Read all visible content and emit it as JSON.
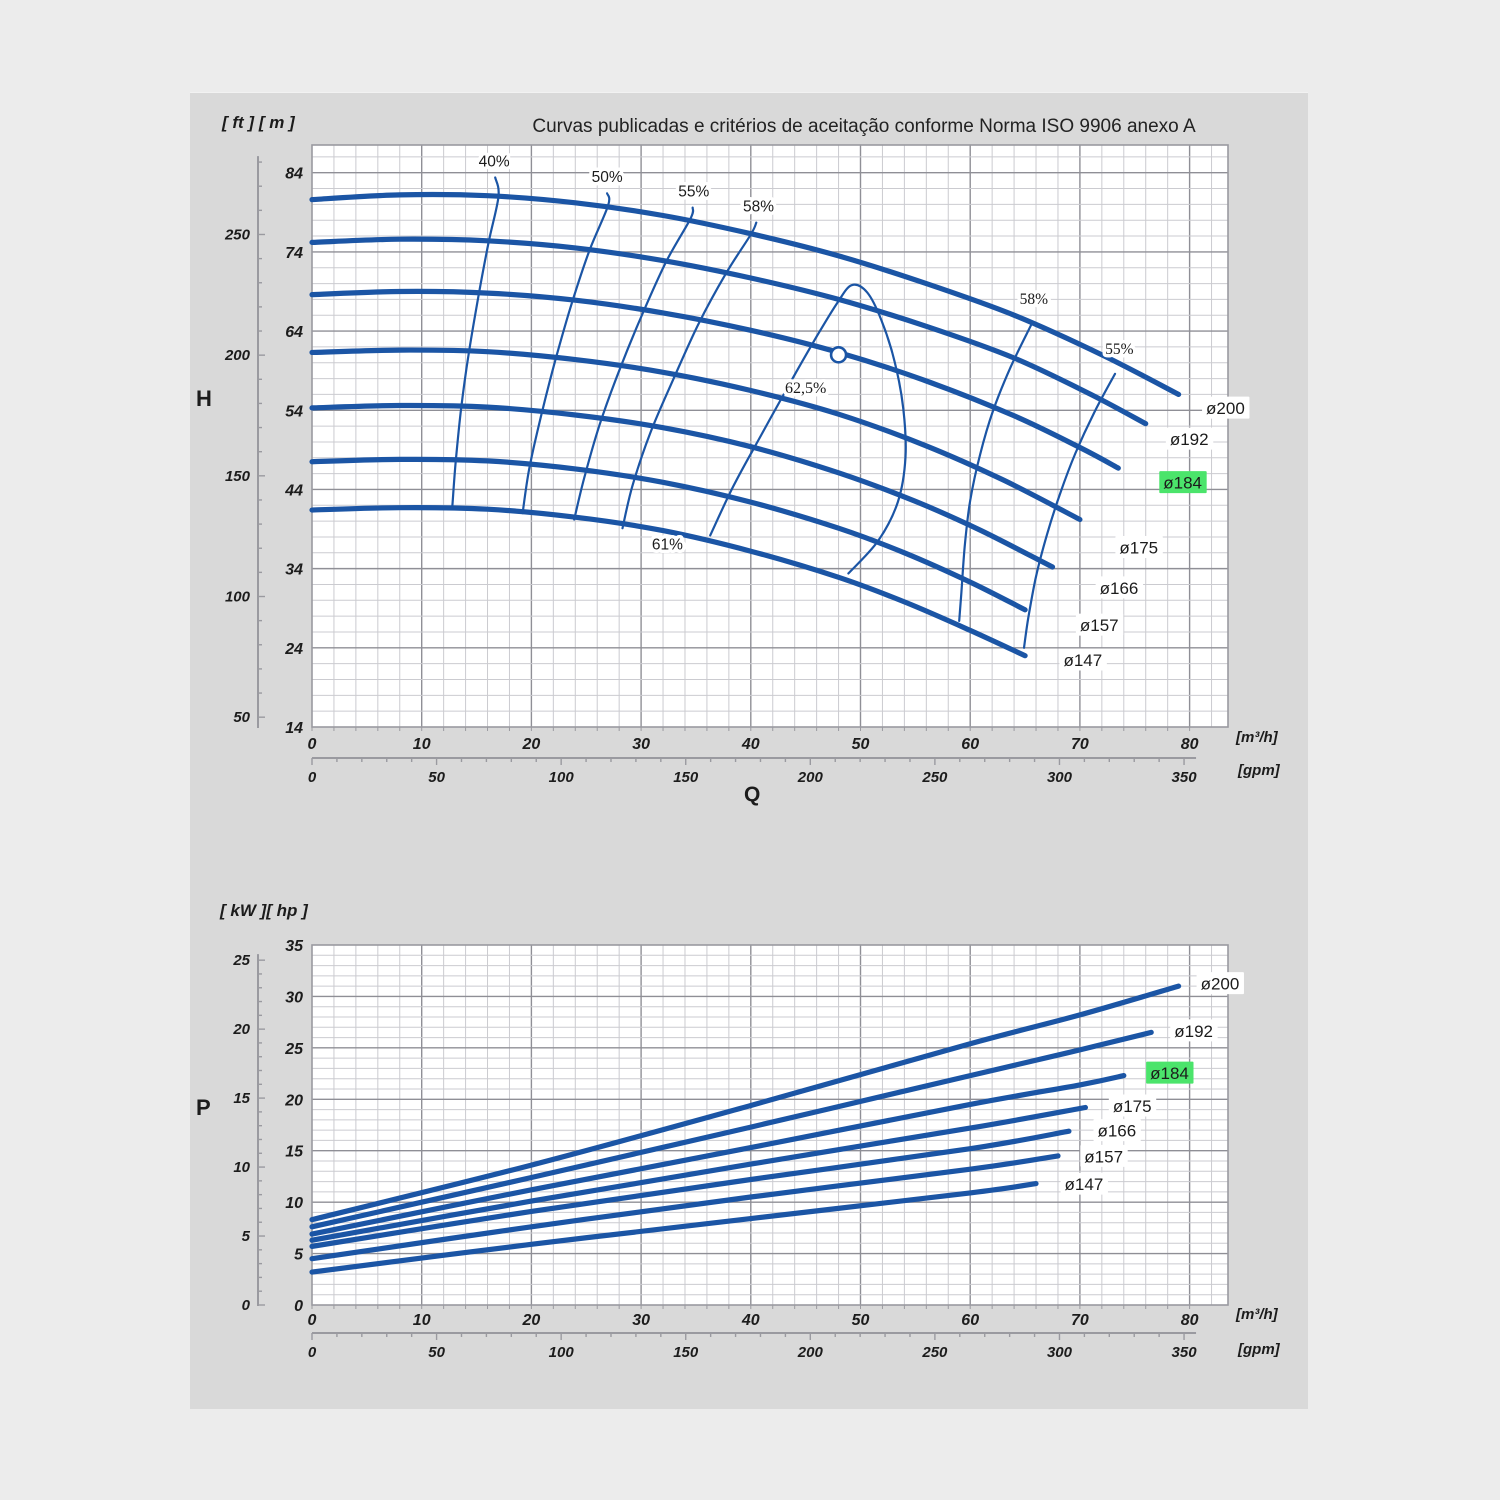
{
  "title": "Curvas publicadas e critérios de aceitação conforme Norma ISO 9906 anexo A",
  "labels": {
    "head_units_header": "[ ft ]  [ m ]",
    "power_units_header": "[ kW ][ hp ]",
    "head_axis": "H",
    "power_axis": "P",
    "flow_axis": "Q",
    "flow_unit_metric": "[m³/h]",
    "flow_unit_us": "[gpm]"
  },
  "colors": {
    "curve": "#1b55a5",
    "grid_minor": "#cbcbd0",
    "grid_major": "#8f8f96",
    "plot_border": "#9a9aa0",
    "plot_bg": "#ffffff",
    "text": "#1c1c1c",
    "label_bg": "#ffffff",
    "highlight_bg": "#4be46b",
    "ruler": "#9a9aa0"
  },
  "chart_data": [
    {
      "id": "head-flow",
      "type": "line",
      "ylabel": "H",
      "xlabel": "Q",
      "x_axis": {
        "range": [
          0,
          83.5
        ],
        "tick_labels": [
          0,
          10,
          20,
          30,
          40,
          50,
          60,
          70,
          80
        ],
        "minor_step": 2,
        "unit": "[m³/h]"
      },
      "x_secondary_axis": {
        "unit": "[gpm]",
        "tick_labels": [
          0,
          50,
          100,
          150,
          200,
          250,
          300,
          350
        ],
        "minor_step": 10,
        "max_tick": 350,
        "gpm_to_m3h": 0.227125
      },
      "y_axis": {
        "range": [
          14,
          87.5
        ],
        "tick_labels": [
          84,
          74,
          64,
          54,
          44,
          34,
          24,
          14
        ],
        "minor_step": 2,
        "unit": "m"
      },
      "y_secondary_axis": {
        "unit": "ft",
        "tick_labels": [
          250,
          200,
          150,
          100,
          50
        ],
        "tick_step": 10,
        "min_tick": 50,
        "max_tick": 280,
        "ft_to_m": 0.3048
      },
      "series": [
        {
          "name": "ø200",
          "highlight": false,
          "label_pos": [
            81.5,
            54.2
          ],
          "points": [
            [
              0,
              80.6
            ],
            [
              8,
              81.2
            ],
            [
              16,
              81.1
            ],
            [
              24,
              80.2
            ],
            [
              32,
              78.6
            ],
            [
              40,
              76.3
            ],
            [
              48,
              73.5
            ],
            [
              56,
              70.0
            ],
            [
              64,
              66.0
            ],
            [
              72,
              61.0
            ],
            [
              79,
              56.0
            ]
          ]
        },
        {
          "name": "ø192",
          "highlight": false,
          "label_pos": [
            78.2,
            50.3
          ],
          "points": [
            [
              0,
              75.2
            ],
            [
              8,
              75.6
            ],
            [
              16,
              75.4
            ],
            [
              24,
              74.5
            ],
            [
              32,
              72.9
            ],
            [
              40,
              70.7
            ],
            [
              48,
              68.0
            ],
            [
              56,
              64.6
            ],
            [
              64,
              60.6
            ],
            [
              71,
              56.0
            ],
            [
              76,
              52.3
            ]
          ]
        },
        {
          "name": "ø184",
          "highlight": true,
          "label_pos": [
            77.6,
            44.8
          ],
          "points": [
            [
              0,
              68.6
            ],
            [
              8,
              69.0
            ],
            [
              16,
              68.8
            ],
            [
              24,
              67.9
            ],
            [
              32,
              66.3
            ],
            [
              40,
              64.1
            ],
            [
              48,
              61.3
            ],
            [
              56,
              57.7
            ],
            [
              64,
              53.3
            ],
            [
              70,
              49.3
            ],
            [
              73.5,
              46.7
            ]
          ]
        },
        {
          "name": "ø175",
          "highlight": false,
          "label_pos": [
            73.6,
            36.6
          ],
          "points": [
            [
              0,
              61.3
            ],
            [
              8,
              61.6
            ],
            [
              16,
              61.4
            ],
            [
              24,
              60.4
            ],
            [
              32,
              58.8
            ],
            [
              40,
              56.5
            ],
            [
              48,
              53.5
            ],
            [
              56,
              49.5
            ],
            [
              63,
              45.2
            ],
            [
              70,
              40.2
            ]
          ]
        },
        {
          "name": "ø166",
          "highlight": false,
          "label_pos": [
            71.8,
            31.5
          ],
          "points": [
            [
              0,
              54.3
            ],
            [
              8,
              54.6
            ],
            [
              16,
              54.4
            ],
            [
              24,
              53.4
            ],
            [
              32,
              51.8
            ],
            [
              40,
              49.4
            ],
            [
              48,
              46.1
            ],
            [
              55,
              42.5
            ],
            [
              61,
              38.8
            ],
            [
              67.5,
              34.2
            ]
          ]
        },
        {
          "name": "ø157",
          "highlight": false,
          "label_pos": [
            70.0,
            26.8
          ],
          "points": [
            [
              0,
              47.5
            ],
            [
              8,
              47.8
            ],
            [
              16,
              47.6
            ],
            [
              24,
              46.6
            ],
            [
              32,
              44.9
            ],
            [
              40,
              42.4
            ],
            [
              48,
              39.1
            ],
            [
              54,
              36.0
            ],
            [
              60,
              32.3
            ],
            [
              65,
              28.8
            ]
          ]
        },
        {
          "name": "ø147",
          "highlight": false,
          "label_pos": [
            68.5,
            22.4
          ],
          "points": [
            [
              0,
              41.4
            ],
            [
              8,
              41.7
            ],
            [
              16,
              41.5
            ],
            [
              24,
              40.5
            ],
            [
              32,
              38.8
            ],
            [
              40,
              36.2
            ],
            [
              48,
              32.9
            ],
            [
              54,
              29.8
            ],
            [
              60,
              26.2
            ],
            [
              65,
              23.0
            ]
          ]
        }
      ],
      "efficiency_lines": [
        {
          "label": "40%",
          "font": "sans",
          "label_pos": [
            16.6,
            84.8
          ],
          "points": [
            [
              16.7,
              83.4
            ],
            [
              17.0,
              81.0
            ],
            [
              16.1,
              75.2
            ],
            [
              15.2,
              68.6
            ],
            [
              14.3,
              61.3
            ],
            [
              13.6,
              54.3
            ],
            [
              13.1,
              47.5
            ],
            [
              12.8,
              42.0
            ]
          ]
        },
        {
          "label": "50%",
          "font": "sans",
          "label_pos": [
            26.9,
            82.8
          ],
          "points": [
            [
              26.9,
              81.4
            ],
            [
              27.0,
              79.9
            ],
            [
              25.3,
              74.2
            ],
            [
              23.7,
              67.6
            ],
            [
              22.2,
              60.4
            ],
            [
              20.9,
              53.4
            ],
            [
              19.8,
              46.6
            ],
            [
              19.2,
              41.0
            ]
          ]
        },
        {
          "label": "55%",
          "font": "sans",
          "label_pos": [
            34.8,
            81.0
          ],
          "points": [
            [
              34.7,
              79.6
            ],
            [
              34.5,
              78.2
            ],
            [
              32.3,
              72.8
            ],
            [
              30.1,
              66.1
            ],
            [
              28.0,
              59.0
            ],
            [
              26.2,
              52.1
            ],
            [
              24.8,
              45.4
            ],
            [
              23.9,
              40.2
            ]
          ]
        },
        {
          "label": "58%",
          "font": "sans",
          "label_pos": [
            40.7,
            79.1
          ],
          "points": [
            [
              40.5,
              77.7
            ],
            [
              40.0,
              76.2
            ],
            [
              37.7,
              71.2
            ],
            [
              35.2,
              64.8
            ],
            [
              32.9,
              57.8
            ],
            [
              30.8,
              51.0
            ],
            [
              29.2,
              44.4
            ],
            [
              28.3,
              39.1
            ]
          ]
        },
        {
          "label": "61%",
          "font": "sans",
          "label_pos": [
            32.4,
            36.4
          ],
          "points": [
            [
              36.3,
              38.2
            ],
            [
              38.4,
              44.4
            ],
            [
              41.0,
              51.0
            ],
            [
              43.6,
              57.5
            ],
            [
              46.0,
              63.3
            ],
            [
              47.9,
              67.6
            ],
            [
              49.2,
              69.8
            ],
            [
              50.6,
              68.9
            ],
            [
              51.9,
              65.4
            ],
            [
              53.1,
              60.2
            ],
            [
              53.9,
              54.2
            ],
            [
              54.1,
              48.1
            ],
            [
              53.4,
              42.4
            ],
            [
              51.6,
              37.5
            ],
            [
              48.9,
              33.4
            ]
          ]
        },
        {
          "label": "58%",
          "font": "serif",
          "label_pos": [
            65.8,
            67.4
          ],
          "points": [
            [
              65.6,
              64.9
            ],
            [
              63.7,
              59.5
            ],
            [
              62.1,
              54.0
            ],
            [
              60.9,
              48.4
            ],
            [
              60.0,
              42.6
            ],
            [
              59.5,
              36.8
            ],
            [
              59.2,
              31.0
            ],
            [
              59.0,
              27.4
            ]
          ]
        },
        {
          "label": "55%",
          "font": "serif",
          "label_pos": [
            73.6,
            61.1
          ],
          "points": [
            [
              73.2,
              58.6
            ],
            [
              71.3,
              53.7
            ],
            [
              69.6,
              48.6
            ],
            [
              68.2,
              43.5
            ],
            [
              67.0,
              38.3
            ],
            [
              66.0,
              33.0
            ],
            [
              65.3,
              27.8
            ],
            [
              64.9,
              24.0
            ]
          ]
        }
      ],
      "duty_marker": {
        "pos": [
          48,
          61
        ],
        "label": "62,5%",
        "label_pos": [
          45.0,
          56.2
        ]
      }
    },
    {
      "id": "power-flow",
      "type": "line",
      "ylabel": "P",
      "x_axis": {
        "range": [
          0,
          83.5
        ],
        "tick_labels": [
          0,
          10,
          20,
          30,
          40,
          50,
          60,
          70,
          80
        ],
        "minor_step": 2,
        "unit": "[m³/h]"
      },
      "x_secondary_axis": {
        "unit": "[gpm]",
        "tick_labels": [
          0,
          50,
          100,
          150,
          200,
          250,
          300,
          350
        ],
        "minor_step": 10,
        "max_tick": 350,
        "gpm_to_m3h": 0.227125
      },
      "y_axis": {
        "range": [
          0,
          35
        ],
        "tick_labels": [
          35,
          30,
          25,
          20,
          15,
          10,
          5,
          0
        ],
        "minor_step": 1,
        "major_step": 5,
        "unit": "hp"
      },
      "y_secondary_axis": {
        "unit": "kW",
        "tick_labels": [
          25,
          20,
          15,
          10,
          5,
          0
        ],
        "tick_step": 1,
        "min_tick": 0,
        "max_tick": 25,
        "kw_to_hp": 1.34102
      },
      "series": [
        {
          "name": "ø200",
          "highlight": false,
          "label_pos": [
            81.0,
            31.2
          ],
          "points": [
            [
              0,
              8.3
            ],
            [
              20,
              13.6
            ],
            [
              40,
              19.4
            ],
            [
              60,
              25.4
            ],
            [
              70,
              28.2
            ],
            [
              79,
              31.0
            ]
          ]
        },
        {
          "name": "ø192",
          "highlight": false,
          "label_pos": [
            78.6,
            26.6
          ],
          "points": [
            [
              0,
              7.6
            ],
            [
              20,
              12.4
            ],
            [
              40,
              17.3
            ],
            [
              60,
              22.3
            ],
            [
              70,
              24.8
            ],
            [
              76.5,
              26.5
            ]
          ]
        },
        {
          "name": "ø184",
          "highlight": true,
          "label_pos": [
            76.4,
            22.5
          ],
          "points": [
            [
              0,
              6.9
            ],
            [
              20,
              11.2
            ],
            [
              40,
              15.3
            ],
            [
              60,
              19.5
            ],
            [
              70,
              21.4
            ],
            [
              74,
              22.3
            ]
          ]
        },
        {
          "name": "ø175",
          "highlight": false,
          "label_pos": [
            73.0,
            19.3
          ],
          "points": [
            [
              0,
              6.3
            ],
            [
              20,
              10.1
            ],
            [
              40,
              13.7
            ],
            [
              60,
              17.2
            ],
            [
              70.5,
              19.2
            ]
          ]
        },
        {
          "name": "ø166",
          "highlight": false,
          "label_pos": [
            71.6,
            16.9
          ],
          "points": [
            [
              0,
              5.7
            ],
            [
              20,
              9.1
            ],
            [
              40,
              12.2
            ],
            [
              60,
              15.2
            ],
            [
              69,
              16.9
            ]
          ]
        },
        {
          "name": "ø157",
          "highlight": false,
          "label_pos": [
            70.4,
            14.4
          ],
          "points": [
            [
              0,
              4.5
            ],
            [
              20,
              7.6
            ],
            [
              40,
              10.5
            ],
            [
              60,
              13.2
            ],
            [
              68,
              14.5
            ]
          ]
        },
        {
          "name": "ø147",
          "highlight": false,
          "label_pos": [
            68.6,
            11.7
          ],
          "points": [
            [
              0,
              3.2
            ],
            [
              20,
              5.9
            ],
            [
              40,
              8.4
            ],
            [
              60,
              10.9
            ],
            [
              66,
              11.8
            ]
          ]
        }
      ]
    }
  ]
}
